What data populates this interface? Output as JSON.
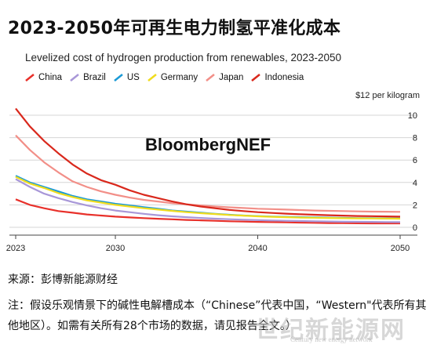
{
  "page_title": "2023-2050年可再生电力制氢平准化成本",
  "brand": "BloombergNEF",
  "source": "来源：彭博新能源财经",
  "note": "注：假设乐观情景下的碱性电解槽成本（“Chinese”代表中国，“Western\"代表所有其他地区）。如需有关所有28个市场的数据，请见报告全文。）",
  "watermark": "世纪新能源网",
  "watermark_en": "Century new energy network",
  "chart_data": {
    "type": "line",
    "title": "Levelized cost of hydrogen production from renewables, 2023-2050",
    "unit_label": "$12 per kilogram",
    "x": [
      2023,
      2024,
      2025,
      2026,
      2027,
      2028,
      2029,
      2030,
      2031,
      2032,
      2033,
      2034,
      2035,
      2036,
      2037,
      2038,
      2039,
      2040,
      2041,
      2042,
      2043,
      2044,
      2045,
      2046,
      2047,
      2048,
      2049,
      2050
    ],
    "xlim": [
      2023,
      2050
    ],
    "ylim": [
      0,
      12
    ],
    "x_ticks": [
      2023,
      2030,
      2040,
      2050
    ],
    "y_ticks": [
      0,
      2,
      4,
      6,
      8,
      10
    ],
    "legend_position": "top-left",
    "grid": "horizontal",
    "series": [
      {
        "name": "China",
        "color": "#e8302a",
        "values": [
          2.5,
          2.0,
          1.7,
          1.45,
          1.3,
          1.15,
          1.05,
          0.95,
          0.88,
          0.82,
          0.76,
          0.71,
          0.66,
          0.62,
          0.58,
          0.54,
          0.51,
          0.48,
          0.46,
          0.44,
          0.42,
          0.4,
          0.38,
          0.37,
          0.36,
          0.35,
          0.35,
          0.35
        ]
      },
      {
        "name": "Brazil",
        "color": "#a897d8",
        "values": [
          4.3,
          3.6,
          3.0,
          2.6,
          2.25,
          1.95,
          1.7,
          1.5,
          1.35,
          1.2,
          1.08,
          0.98,
          0.9,
          0.83,
          0.77,
          0.72,
          0.68,
          0.64,
          0.61,
          0.58,
          0.56,
          0.54,
          0.52,
          0.5,
          0.49,
          0.48,
          0.47,
          0.46
        ]
      },
      {
        "name": "US",
        "color": "#1b9ad6",
        "values": [
          4.6,
          4.0,
          3.6,
          3.2,
          2.8,
          2.5,
          2.3,
          2.1,
          1.95,
          1.8,
          1.65,
          1.5,
          1.4,
          1.3,
          1.2,
          1.12,
          1.05,
          1.0,
          0.96,
          0.93,
          0.9,
          0.88,
          0.86,
          0.84,
          0.82,
          0.81,
          0.8,
          0.79
        ]
      },
      {
        "name": "Germany",
        "color": "#f0dc1e",
        "values": [
          4.5,
          3.9,
          3.5,
          3.05,
          2.7,
          2.4,
          2.2,
          2.0,
          1.85,
          1.7,
          1.58,
          1.46,
          1.35,
          1.26,
          1.18,
          1.1,
          1.04,
          0.98,
          0.94,
          0.9,
          0.87,
          0.85,
          0.83,
          0.81,
          0.8,
          0.79,
          0.78,
          0.77
        ]
      },
      {
        "name": "Japan",
        "color": "#f28f88",
        "values": [
          8.2,
          6.9,
          5.8,
          4.9,
          4.1,
          3.6,
          3.2,
          2.9,
          2.65,
          2.45,
          2.3,
          2.15,
          2.05,
          1.95,
          1.85,
          1.78,
          1.72,
          1.66,
          1.62,
          1.58,
          1.54,
          1.5,
          1.47,
          1.45,
          1.42,
          1.4,
          1.39,
          1.38
        ]
      },
      {
        "name": "Indonesia",
        "color": "#d9281c",
        "values": [
          10.6,
          9.0,
          7.7,
          6.6,
          5.6,
          4.8,
          4.2,
          3.8,
          3.3,
          2.9,
          2.6,
          2.3,
          2.05,
          1.85,
          1.7,
          1.55,
          1.45,
          1.35,
          1.28,
          1.22,
          1.16,
          1.12,
          1.08,
          1.04,
          1.01,
          0.99,
          0.97,
          0.95
        ]
      }
    ]
  }
}
